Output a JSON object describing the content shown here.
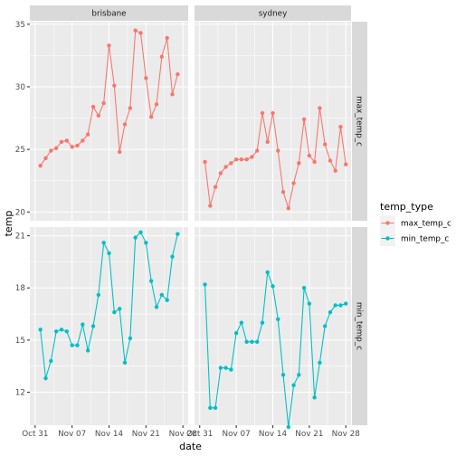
{
  "chart_data": {
    "type": "line",
    "xlabel": "date",
    "ylabel": "temp",
    "x_ticks": [
      "Oct 31",
      "Nov 07",
      "Nov 14",
      "Nov 21",
      "Nov 28"
    ],
    "columns": [
      "brisbane",
      "sydney"
    ],
    "rows": [
      "max_temp_c",
      "min_temp_c"
    ],
    "x_range": [
      "2019-10-30",
      "2019-11-29"
    ],
    "row_ranges": {
      "max_temp_c": {
        "ylim": [
          19.3,
          35.2
        ],
        "ticks": [
          20,
          25,
          30,
          35
        ]
      },
      "min_temp_c": {
        "ylim": [
          10.1,
          21.5
        ],
        "ticks": [
          12,
          15,
          18,
          21
        ]
      }
    },
    "legend": {
      "title": "temp_type",
      "position": "right",
      "entries": [
        "max_temp_c",
        "min_temp_c"
      ]
    },
    "colors": {
      "max_temp_c": "#F8766D",
      "min_temp_c": "#00BFC4"
    },
    "start_date": "2019-11-01",
    "series": [
      {
        "city": "brisbane",
        "temp_type": "max_temp_c",
        "values": [
          23.7,
          24.3,
          24.9,
          25.1,
          25.6,
          25.7,
          25.2,
          25.3,
          25.7,
          26.2,
          28.4,
          27.7,
          28.7,
          33.3,
          30.1,
          24.8,
          27.0,
          28.3,
          34.5,
          34.3,
          30.7,
          27.6,
          28.6,
          32.4,
          33.9,
          29.4,
          31.0
        ]
      },
      {
        "city": "brisbane",
        "temp_type": "min_temp_c",
        "values": [
          15.6,
          12.8,
          13.8,
          15.5,
          15.6,
          15.5,
          14.7,
          14.7,
          15.9,
          14.4,
          15.8,
          17.6,
          20.6,
          20.0,
          16.6,
          16.8,
          13.7,
          15.1,
          20.9,
          21.2,
          20.6,
          18.4,
          16.9,
          17.6,
          17.3,
          19.8,
          21.1
        ]
      },
      {
        "city": "sydney",
        "temp_type": "max_temp_c",
        "values": [
          24.0,
          20.5,
          22.0,
          23.1,
          23.6,
          23.9,
          24.2,
          24.2,
          24.2,
          24.4,
          24.9,
          27.9,
          25.6,
          27.9,
          24.9,
          21.6,
          20.3,
          22.3,
          23.9,
          27.4,
          24.5,
          24.0,
          28.3,
          25.4,
          24.1,
          23.3,
          26.8,
          23.8
        ]
      },
      {
        "city": "sydney",
        "temp_type": "min_temp_c",
        "values": [
          18.2,
          11.1,
          11.1,
          13.4,
          13.4,
          13.3,
          15.4,
          16.0,
          14.9,
          14.9,
          14.9,
          16.0,
          18.9,
          18.1,
          16.2,
          13.0,
          10.0,
          12.4,
          13.0,
          18.0,
          17.1,
          11.7,
          13.7,
          15.8,
          16.6,
          17.0,
          17.0,
          17.1
        ]
      }
    ]
  }
}
